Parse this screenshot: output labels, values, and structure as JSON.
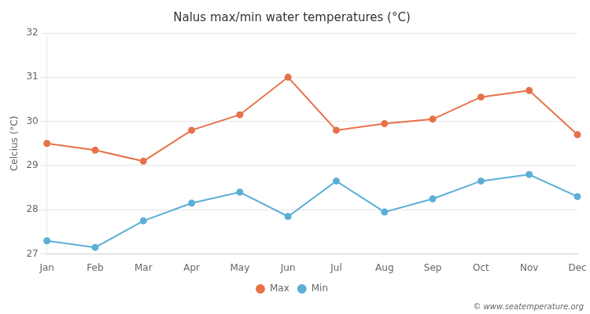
{
  "chart_data": {
    "type": "line",
    "title": "Nalus max/min water temperatures (°C)",
    "ylabel": "Celcius (°C)",
    "categories": [
      "Jan",
      "Feb",
      "Mar",
      "Apr",
      "May",
      "Jun",
      "Jul",
      "Aug",
      "Sep",
      "Oct",
      "Nov",
      "Dec"
    ],
    "series": [
      {
        "name": "Max",
        "color": "#e8714a",
        "marker": "circle",
        "values": [
          29.5,
          29.35,
          29.1,
          29.8,
          30.15,
          31.0,
          29.8,
          29.95,
          30.05,
          30.55,
          30.7,
          29.7
        ]
      },
      {
        "name": "Min",
        "color": "#5bafd6",
        "marker": "circle",
        "values": [
          27.3,
          27.15,
          27.75,
          28.15,
          28.4,
          27.85,
          28.65,
          27.95,
          28.25,
          28.65,
          28.8,
          28.3
        ]
      }
    ],
    "ylim": [
      27,
      32
    ],
    "yticks": [
      27,
      28,
      29,
      30,
      31,
      32
    ],
    "grid": true,
    "legend": "bottom",
    "annotations": [
      "© www.seatemperature.org"
    ]
  }
}
